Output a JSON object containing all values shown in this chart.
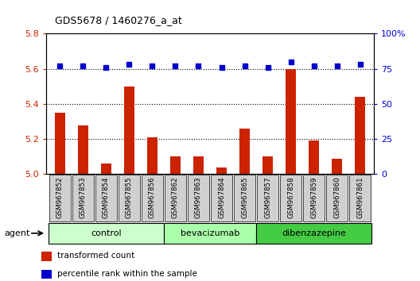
{
  "title": "GDS5678 / 1460276_a_at",
  "samples": [
    "GSM967852",
    "GSM967853",
    "GSM967854",
    "GSM967855",
    "GSM967856",
    "GSM967862",
    "GSM967863",
    "GSM967864",
    "GSM967865",
    "GSM967857",
    "GSM967858",
    "GSM967859",
    "GSM967860",
    "GSM967861"
  ],
  "red_values": [
    5.35,
    5.28,
    5.06,
    5.5,
    5.21,
    5.1,
    5.1,
    5.04,
    5.26,
    5.1,
    5.6,
    5.19,
    5.09,
    5.44
  ],
  "blue_values": [
    77,
    77,
    76,
    78,
    77,
    77,
    77,
    76,
    77,
    76,
    80,
    77,
    77,
    78
  ],
  "ylim_left": [
    5.0,
    5.8
  ],
  "ylim_right": [
    0,
    100
  ],
  "yticks_left": [
    5.0,
    5.2,
    5.4,
    5.6,
    5.8
  ],
  "yticks_right": [
    0,
    25,
    50,
    75,
    100
  ],
  "ytick_labels_right": [
    "0",
    "25",
    "50",
    "75",
    "100%"
  ],
  "groups": [
    {
      "name": "control",
      "start": 0,
      "end": 5,
      "color": "#ccffcc"
    },
    {
      "name": "bevacizumab",
      "start": 5,
      "end": 9,
      "color": "#aaffaa"
    },
    {
      "name": "dibenzazepine",
      "start": 9,
      "end": 14,
      "color": "#44cc44"
    }
  ],
  "bar_color": "#cc2200",
  "dot_color": "#0000cc",
  "bar_width": 0.45,
  "agent_label": "agent",
  "legend_items": [
    {
      "color": "#cc2200",
      "label": "transformed count"
    },
    {
      "color": "#0000cc",
      "label": "percentile rank within the sample"
    }
  ],
  "gridline_yvals": [
    5.2,
    5.4,
    5.6
  ],
  "tick_bg_color": "#d0d0d0"
}
